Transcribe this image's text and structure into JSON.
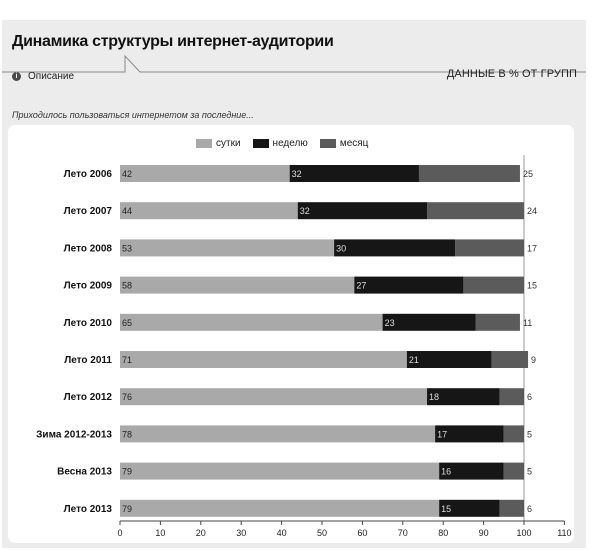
{
  "header": {
    "title": "Динамика структуры интернет-аудитории",
    "description_label": "Описание",
    "data_unit": "ДАННЫЕ В % ОТ ГРУПП",
    "info_icon": "info-icon"
  },
  "chart_data": {
    "type": "bar",
    "orientation": "horizontal",
    "stacked": true,
    "title": "",
    "subtitle": "Приходилось пользоваться интернетом за последние...",
    "xlabel": "",
    "ylabel": "",
    "xlim": [
      0,
      110
    ],
    "x_ticks": [
      "0",
      "10",
      "20",
      "30",
      "40",
      "50",
      "60",
      "70",
      "80",
      "90",
      "100",
      "110"
    ],
    "legend_position": "top",
    "grid": false,
    "categories": [
      "Лето 2006",
      "Лето 2007",
      "Лето 2008",
      "Лето 2009",
      "Лето 2010",
      "Лето 2011",
      "Лето 2012",
      "Зима 2012-2013",
      "Весна 2013",
      "Лето 2013"
    ],
    "series": [
      {
        "name": "сутки",
        "color": "#a9a9a9",
        "values": [
          42,
          44,
          53,
          58,
          65,
          71,
          76,
          78,
          79,
          79
        ],
        "labels": [
          "42",
          "44",
          "53",
          "58",
          "65",
          "71",
          "76",
          "78",
          "79",
          "79"
        ]
      },
      {
        "name": "неделю",
        "color": "#161616",
        "values": [
          32,
          32,
          30,
          27,
          23,
          21,
          18,
          17,
          16,
          15
        ],
        "labels": [
          "32",
          "32",
          "30",
          "27",
          "23",
          "21",
          "18",
          "17",
          "16",
          "15"
        ]
      },
      {
        "name": "месяц",
        "color": "#5b5b5b",
        "values": [
          25,
          24,
          17,
          15,
          11,
          9,
          6,
          5,
          5,
          6
        ],
        "labels": [
          "25",
          "24",
          "17",
          "15",
          "11",
          "9",
          "6",
          "5",
          "5",
          "6"
        ]
      }
    ]
  }
}
